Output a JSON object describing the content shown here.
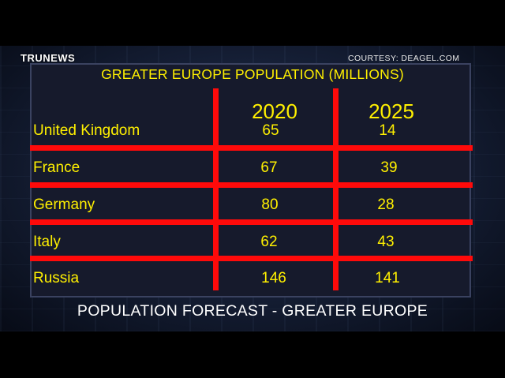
{
  "logo": "TRUNEWS",
  "courtesy": "COURTESY:  DEAGEL.COM",
  "title": "GREATER EUROPE POPULATION (MILLIONS)",
  "columns": [
    "2020",
    "2025"
  ],
  "rows": [
    {
      "country": "United Kingdom",
      "y2020": "65",
      "y2025": "14"
    },
    {
      "country": "France",
      "y2020": "67",
      "y2025": "39"
    },
    {
      "country": "Germany",
      "y2020": "80",
      "y2025": "28"
    },
    {
      "country": "Italy",
      "y2020": "62",
      "y2025": "43"
    },
    {
      "country": "Russia",
      "y2020": "146",
      "y2025": "141"
    }
  ],
  "caption": "POPULATION FORECAST - GREATER EUROPE",
  "colors": {
    "text": "#fff000",
    "grid": "#ff0a0a",
    "panel": "#161a2c"
  }
}
